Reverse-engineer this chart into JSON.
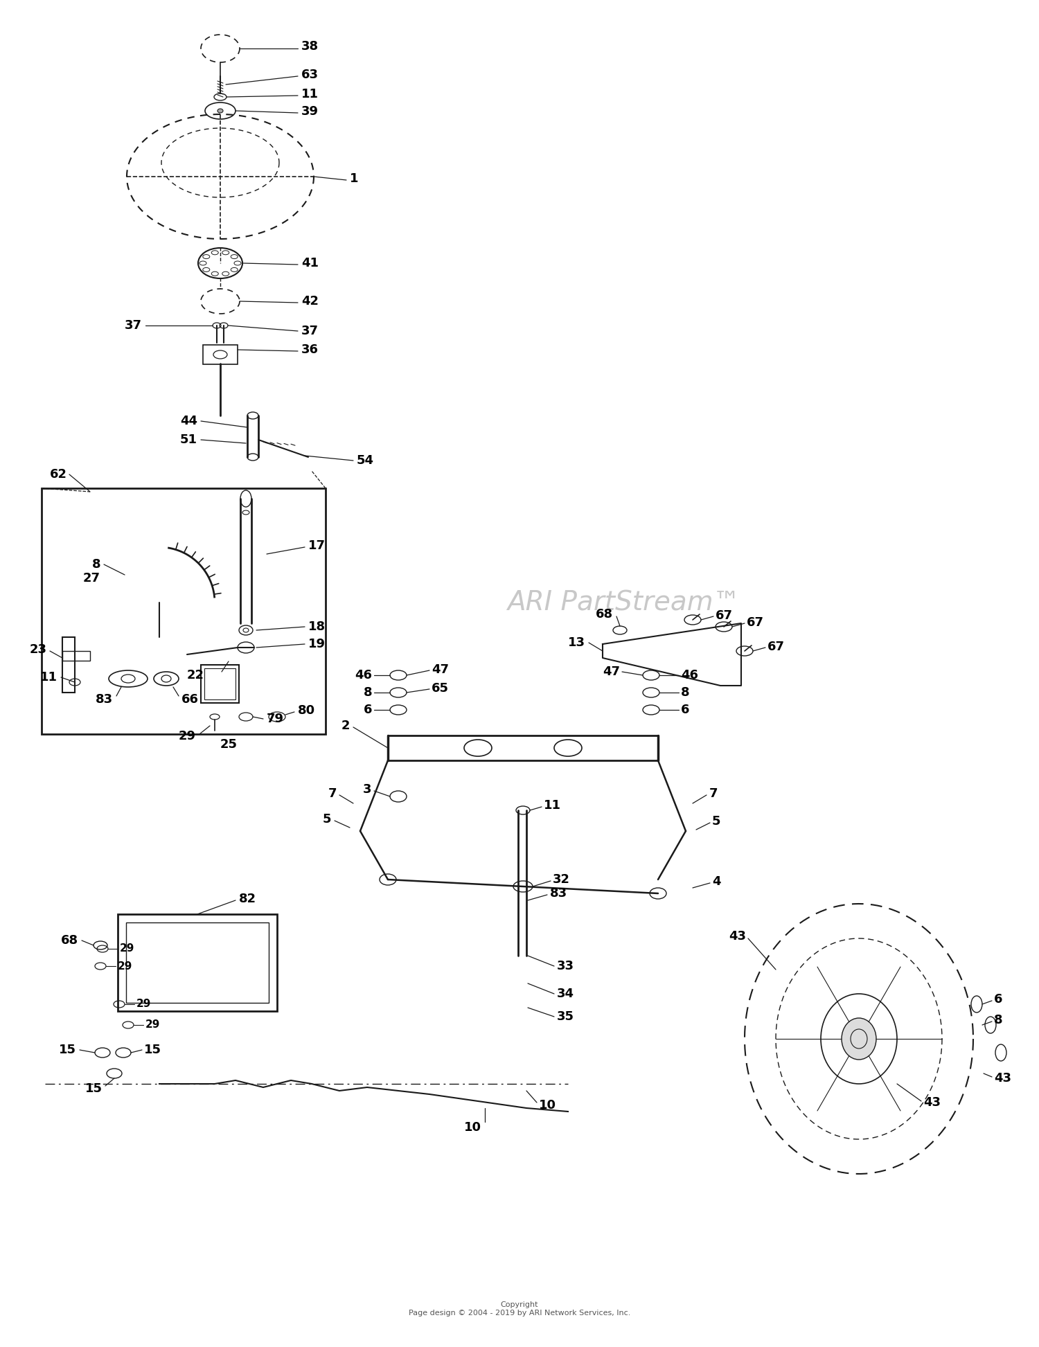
{
  "watermark": "ARI PartStream™",
  "watermark_color": "#c8c8c8",
  "copyright_text": "Copyright\nPage design © 2004 - 2019 by ARI Network Services, Inc.",
  "bg_color": "#ffffff",
  "line_color": "#1a1a1a"
}
